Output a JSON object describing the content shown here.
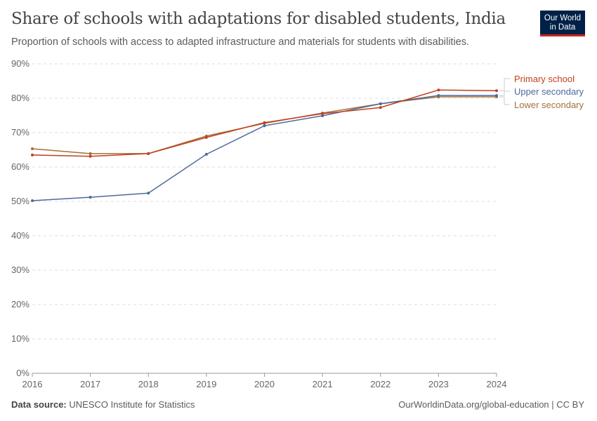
{
  "header": {
    "title": "Share of schools with adaptations for disabled students, India",
    "subtitle": "Proportion of schools with access to adapted infrastructure and materials for students with disabilities.",
    "logo_text": "Our World in Data"
  },
  "footer": {
    "source_label": "Data source:",
    "source": "UNESCO Institute for Statistics",
    "link": "OurWorldinData.org/global-education | CC BY"
  },
  "chart_data": {
    "type": "line",
    "title": "Share of schools with adaptations for disabled students, India",
    "x": [
      2016,
      2017,
      2018,
      2019,
      2020,
      2021,
      2022,
      2023,
      2024
    ],
    "x_ticks": [
      "2016",
      "2017",
      "2018",
      "2019",
      "2020",
      "2021",
      "2022",
      "2023",
      "2024"
    ],
    "ylim": [
      0,
      90
    ],
    "y_ticks": [
      "0%",
      "10%",
      "20%",
      "30%",
      "40%",
      "50%",
      "60%",
      "70%",
      "80%",
      "90%"
    ],
    "grid": true,
    "legend_placement": "right",
    "series": [
      {
        "name": "Primary school",
        "color": "#c0401c",
        "values": [
          63.5,
          63.1,
          63.9,
          68.6,
          72.9,
          75.5,
          77.3,
          82.4,
          82.2
        ]
      },
      {
        "name": "Upper secondary",
        "color": "#4c6a9c",
        "values": [
          50.2,
          51.2,
          52.4,
          63.7,
          72.0,
          74.9,
          78.4,
          80.8,
          80.8
        ]
      },
      {
        "name": "Lower secondary",
        "color": "#a2703c",
        "values": [
          65.3,
          63.9,
          63.9,
          69.0,
          72.7,
          75.7,
          78.4,
          80.4,
          80.4
        ]
      }
    ]
  }
}
